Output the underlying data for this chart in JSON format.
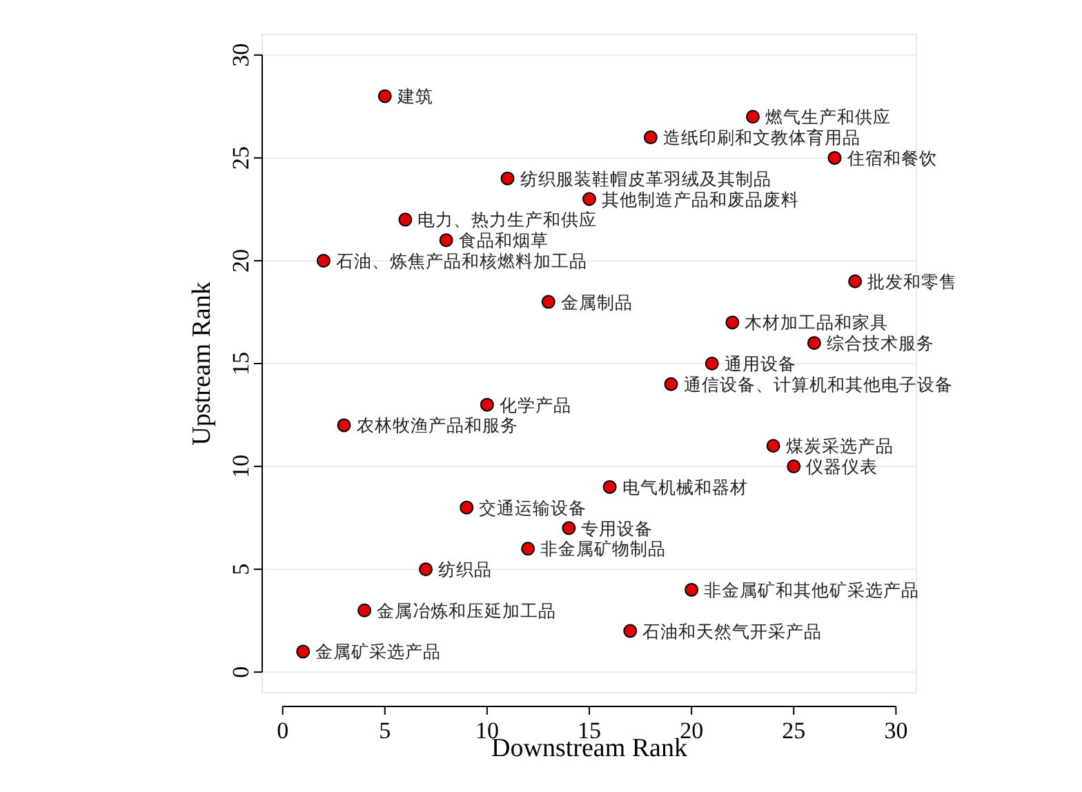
{
  "chart_data": {
    "type": "scatter",
    "xlabel": "Downstream Rank",
    "ylabel": "Upstream Rank",
    "xlim": [
      -1,
      31
    ],
    "ylim": [
      -1,
      31
    ],
    "xticks": [
      0,
      5,
      10,
      15,
      20,
      25,
      30
    ],
    "yticks": [
      0,
      5,
      10,
      15,
      20,
      25,
      30
    ],
    "grid": "y",
    "marker": "circle",
    "color": "#e00000",
    "x": [
      5,
      23,
      18,
      27,
      11,
      15,
      6,
      8,
      2,
      28,
      13,
      22,
      26,
      21,
      19,
      10,
      3,
      24,
      25,
      16,
      9,
      14,
      12,
      7,
      20,
      4,
      17,
      1
    ],
    "values": [
      28,
      27,
      26,
      25,
      24,
      23,
      22,
      21,
      20,
      19,
      18,
      17,
      16,
      15,
      14,
      13,
      12,
      11,
      10,
      9,
      8,
      7,
      6,
      5,
      4,
      3,
      2,
      1
    ],
    "annotations": [
      {
        "text": "建筑",
        "x": 5,
        "y": 28
      },
      {
        "text": "燃气生产和供应",
        "x": 23,
        "y": 27
      },
      {
        "text": "造纸印刷和文教体育用品",
        "x": 18,
        "y": 26
      },
      {
        "text": "住宿和餐饮",
        "x": 27,
        "y": 25
      },
      {
        "text": "纺织服装鞋帽皮革羽绒及其制品",
        "x": 11,
        "y": 24
      },
      {
        "text": "其他制造产品和废品废料",
        "x": 15,
        "y": 23
      },
      {
        "text": "电力、热力生产和供应",
        "x": 6,
        "y": 22
      },
      {
        "text": "食品和烟草",
        "x": 8,
        "y": 21
      },
      {
        "text": "石油、炼焦产品和核燃料加工品",
        "x": 2,
        "y": 20
      },
      {
        "text": "批发和零售",
        "x": 28,
        "y": 19
      },
      {
        "text": "金属制品",
        "x": 13,
        "y": 18
      },
      {
        "text": "木材加工品和家具",
        "x": 22,
        "y": 17
      },
      {
        "text": "综合技术服务",
        "x": 26,
        "y": 16
      },
      {
        "text": "通用设备",
        "x": 21,
        "y": 15
      },
      {
        "text": "通信设备、计算机和其他电子设备",
        "x": 19,
        "y": 14
      },
      {
        "text": "化学产品",
        "x": 10,
        "y": 13
      },
      {
        "text": "农林牧渔产品和服务",
        "x": 3,
        "y": 12
      },
      {
        "text": "煤炭采选产品",
        "x": 24,
        "y": 11
      },
      {
        "text": "仪器仪表",
        "x": 25,
        "y": 10
      },
      {
        "text": "电气机械和器材",
        "x": 16,
        "y": 9
      },
      {
        "text": "交通运输设备",
        "x": 9,
        "y": 8
      },
      {
        "text": "专用设备",
        "x": 14,
        "y": 7
      },
      {
        "text": "非金属矿物制品",
        "x": 12,
        "y": 6
      },
      {
        "text": "纺织品",
        "x": 7,
        "y": 5
      },
      {
        "text": "非金属矿和其他矿采选产品",
        "x": 20,
        "y": 4
      },
      {
        "text": "金属冶炼和压延加工品",
        "x": 4,
        "y": 3
      },
      {
        "text": "石油和天然气开采产品",
        "x": 17,
        "y": 2
      },
      {
        "text": "金属矿采选产品",
        "x": 1,
        "y": 1
      }
    ]
  }
}
